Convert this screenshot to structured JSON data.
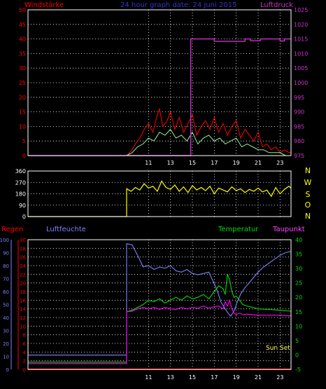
{
  "header": {
    "wind_title": "Windstärke",
    "graph_title": "24 hour graph date: 24 Juni 2015",
    "pressure_title": "Luftdruck"
  },
  "colors": {
    "background": "#000000",
    "wind": "#ff0000",
    "wind_gust": "#90ee90",
    "pressure": "#cc33cc",
    "direction": "#ffff00",
    "rain": "#ff0000",
    "humidity": "#8080ff",
    "temperature": "#00dd00",
    "dewpoint": "#ff00ff",
    "grid": "#ffffff",
    "text_light": "#ffffff"
  },
  "chart_data": [
    {
      "type": "line",
      "id": "wind-pressure",
      "title": "",
      "x_ticks": [
        11,
        13,
        15,
        17,
        19,
        21,
        23
      ],
      "x_range_hours": [
        0,
        24
      ],
      "left_axis": {
        "label": "Windstärke",
        "ticks": [
          0,
          5,
          10,
          15,
          20,
          25,
          30,
          35,
          40,
          45,
          50
        ],
        "range": [
          0,
          50
        ]
      },
      "right_axis": {
        "label": "Luftdruck",
        "ticks": [
          975,
          980,
          985,
          990,
          995,
          1000,
          1005,
          1010,
          1015,
          1020,
          1025
        ],
        "range": [
          975,
          1025
        ]
      },
      "grid": true,
      "series": [
        {
          "name": "Luftdruck",
          "axis": "right",
          "x": [
            0,
            14.85,
            14.85,
            15.6,
            17.0,
            17.0,
            19.8,
            19.8,
            20.3,
            20.3,
            21.2,
            21.2,
            23.0,
            23.0,
            23.4,
            23.4,
            24.0
          ],
          "y": [
            975,
            975,
            1015,
            1015,
            1015,
            1014.2,
            1014.2,
            1015,
            1015,
            1014.4,
            1014.4,
            1015,
            1015,
            1014.3,
            1014.3,
            1015,
            1015
          ]
        },
        {
          "name": "Windstärke",
          "axis": "left",
          "x": [
            0,
            9,
            9.5,
            9.8,
            10.2,
            10.6,
            11.0,
            11.4,
            11.8,
            12.0,
            12.3,
            12.7,
            13.0,
            13.4,
            13.8,
            14.2,
            14.6,
            15.0,
            15.4,
            15.8,
            16.2,
            16.6,
            17.0,
            17.4,
            17.8,
            18.2,
            18.6,
            19.0,
            19.4,
            19.8,
            20.2,
            20.6,
            21.0,
            21.4,
            21.8,
            22.2,
            22.6,
            23.0,
            23.4,
            23.8,
            24.0
          ],
          "y": [
            0,
            0,
            2,
            4,
            6,
            9,
            11,
            8,
            14,
            16,
            10,
            12,
            15,
            9,
            13,
            8,
            11,
            14,
            7,
            10,
            12,
            9,
            13,
            8,
            11,
            7,
            10,
            12,
            6,
            9,
            7,
            5,
            8,
            3,
            4,
            2,
            3,
            1,
            2,
            1,
            1
          ]
        },
        {
          "name": "Böen",
          "axis": "left",
          "x": [
            0,
            9,
            9.5,
            10.0,
            10.5,
            11.0,
            11.5,
            12.0,
            12.5,
            13.0,
            13.5,
            14.0,
            14.5,
            15.0,
            15.5,
            16.0,
            16.5,
            17.0,
            17.5,
            18.0,
            18.5,
            19.0,
            19.5,
            20.0,
            20.5,
            21.0,
            21.5,
            22.0,
            22.5,
            23.0,
            23.5,
            24.0
          ],
          "y": [
            0,
            0,
            1,
            3,
            4,
            6,
            5,
            8,
            7,
            9,
            6,
            7,
            5,
            8,
            4,
            6,
            7,
            5,
            6,
            4,
            5,
            6,
            3,
            4,
            3,
            2,
            2,
            1,
            1,
            1,
            0,
            0
          ]
        }
      ]
    },
    {
      "type": "line",
      "id": "wind-direction",
      "title": "",
      "left_axis": {
        "ticks": [
          0,
          90,
          180,
          270,
          360
        ],
        "range": [
          0,
          360
        ]
      },
      "right_labels": [
        "N",
        "W",
        "S",
        "O",
        "N"
      ],
      "grid": true,
      "series": [
        {
          "name": "Windrichtung",
          "x": [
            0,
            9.0,
            9.0,
            9.4,
            9.8,
            10.2,
            10.6,
            11.0,
            11.4,
            11.8,
            12.2,
            12.6,
            13.0,
            13.4,
            13.8,
            14.2,
            14.6,
            15.0,
            15.4,
            15.8,
            16.2,
            16.6,
            17.0,
            17.4,
            17.8,
            18.2,
            18.6,
            19.0,
            19.4,
            19.8,
            20.2,
            20.6,
            21.0,
            21.4,
            21.8,
            22.2,
            22.6,
            23.0,
            23.4,
            23.8,
            24.0
          ],
          "y": [
            0,
            0,
            220,
            200,
            230,
            210,
            260,
            225,
            240,
            200,
            280,
            230,
            215,
            250,
            200,
            235,
            190,
            245,
            210,
            230,
            205,
            240,
            180,
            225,
            210,
            195,
            235,
            205,
            220,
            190,
            215,
            200,
            225,
            195,
            210,
            160,
            230,
            180,
            215,
            240,
            225
          ]
        }
      ]
    },
    {
      "type": "line",
      "id": "rain-humidity-temp",
      "title": "",
      "axes": {
        "rain": {
          "label": "Regen",
          "ticks": [
            0,
            2,
            4,
            6,
            8,
            10,
            12,
            14,
            16,
            18,
            20,
            22,
            24,
            26,
            28,
            30
          ],
          "range": [
            0,
            30
          ]
        },
        "humidity": {
          "label": "Luftfeuchte",
          "ticks": [
            0,
            10,
            20,
            30,
            40,
            50,
            60,
            70,
            80,
            90,
            100
          ],
          "range": [
            0,
            100
          ]
        },
        "temperature": {
          "label": "Temperatur",
          "ticks": [
            -5,
            0,
            5,
            10,
            15,
            20,
            25,
            30,
            35,
            40
          ],
          "range": [
            -5,
            40
          ]
        }
      },
      "temperature_label": "Temperatur",
      "dewpoint_label": "Taupunkt",
      "annotation": "Sun Set",
      "grid": true,
      "series": [
        {
          "name": "Regen",
          "axis": "rain",
          "x": [
            0,
            24
          ],
          "y": [
            0,
            0
          ]
        },
        {
          "name": "Luftfeuchte",
          "axis": "humidity",
          "x": [
            0,
            9.0,
            9.0,
            9.5,
            10.0,
            10.5,
            11.0,
            11.5,
            12.0,
            12.5,
            13.0,
            13.5,
            14.0,
            14.5,
            15.0,
            15.5,
            16.0,
            16.5,
            17.0,
            17.3,
            17.6,
            17.9,
            18.2,
            18.5,
            18.8,
            19.1,
            19.4,
            19.8,
            20.2,
            20.6,
            21.0,
            21.5,
            22.0,
            22.5,
            23.0,
            23.5,
            24.0
          ],
          "y": [
            11,
            11,
            97,
            96,
            88,
            79,
            80,
            77,
            79,
            78,
            80,
            76,
            75,
            77,
            74,
            73,
            74,
            75,
            66,
            60,
            52,
            48,
            44,
            41,
            45,
            52,
            58,
            63,
            67,
            71,
            75,
            79,
            82,
            85,
            88,
            90,
            91
          ]
        },
        {
          "name": "Temperatur",
          "axis": "temperature",
          "x": [
            0,
            9.0,
            9.0,
            9.5,
            10.0,
            10.5,
            11.0,
            11.5,
            12.0,
            12.5,
            13.0,
            13.5,
            14.0,
            14.5,
            15.0,
            15.5,
            16.0,
            16.5,
            17.0,
            17.4,
            17.8,
            18.0,
            18.2,
            18.4,
            18.6,
            18.8,
            19.0,
            19.3,
            19.6,
            20.0,
            20.5,
            21.0,
            22.0,
            23.0,
            24.0
          ],
          "y": [
            -2.5,
            -2.5,
            15.0,
            15.5,
            16.5,
            17.5,
            19.0,
            18.5,
            19.5,
            18.0,
            19.0,
            20.0,
            19.0,
            20.5,
            19.5,
            20.0,
            21.0,
            19.5,
            22.0,
            24.0,
            23.0,
            21.0,
            28.0,
            26.0,
            22.0,
            20.0,
            20.5,
            19.0,
            17.5,
            17.0,
            16.5,
            16.0,
            15.8,
            15.5,
            15.2
          ]
        },
        {
          "name": "Taupunkt",
          "axis": "temperature",
          "x": [
            0,
            9.0,
            9.0,
            9.5,
            10.0,
            10.5,
            11.0,
            11.5,
            12.0,
            12.5,
            13.0,
            13.5,
            14.0,
            14.5,
            15.0,
            15.5,
            16.0,
            16.5,
            17.0,
            17.4,
            17.8,
            18.0,
            18.2,
            18.4,
            18.6,
            18.8,
            19.0,
            19.3,
            19.6,
            20.0,
            20.5,
            21.0,
            22.0,
            23.0,
            24.0
          ],
          "y": [
            -3.0,
            -3.0,
            15.0,
            15.2,
            16.0,
            16.5,
            16.0,
            16.5,
            15.8,
            16.5,
            16.0,
            15.8,
            16.5,
            16.0,
            16.5,
            16.2,
            17.0,
            16.2,
            16.8,
            17.0,
            16.0,
            18.5,
            17.0,
            19.0,
            16.0,
            14.5,
            14.0,
            14.5,
            14.0,
            14.2,
            14.0,
            13.8,
            13.8,
            13.8,
            13.5
          ]
        }
      ]
    }
  ]
}
